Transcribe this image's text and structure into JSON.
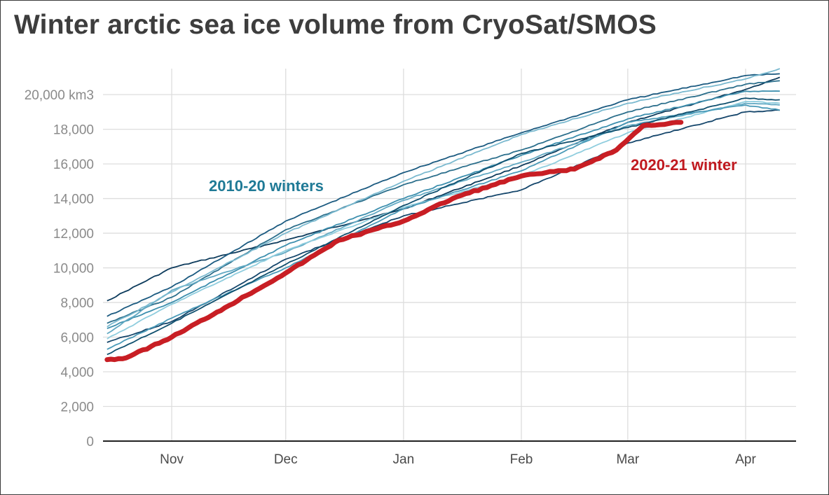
{
  "title": "Winter arctic sea ice volume from CryoSat/SMOS",
  "colors": {
    "current": "#c81e24",
    "history": [
      "#0d3b5c",
      "#1b5a80",
      "#2c6f8c",
      "#3d8fae",
      "#62a9c3",
      "#8fcdde",
      "#15466b",
      "#4a9ab8",
      "#0f4f6e",
      "#7ab9cf"
    ]
  },
  "chart_data": {
    "type": "line",
    "title": "Winter arctic sea ice volume from CryoSat/SMOS",
    "xlabel": "",
    "ylabel": "",
    "y_unit_label": "20,000 km3",
    "ylim": [
      0,
      21500
    ],
    "yticks": [
      {
        "value": 0,
        "label": "0"
      },
      {
        "value": 2000,
        "label": "2,000"
      },
      {
        "value": 4000,
        "label": "4,000"
      },
      {
        "value": 6000,
        "label": "6,000"
      },
      {
        "value": 8000,
        "label": "8,000"
      },
      {
        "value": 10000,
        "label": "10,000"
      },
      {
        "value": 12000,
        "label": "12,000"
      },
      {
        "value": 14000,
        "label": "14,000"
      },
      {
        "value": 16000,
        "label": "16,000"
      },
      {
        "value": 18000,
        "label": "18,000"
      },
      {
        "value": 20000,
        "label": "20,000 km3"
      }
    ],
    "x_axis": {
      "type": "date",
      "start": "Oct 15",
      "end": "Apr 10",
      "ticks": [
        {
          "date": "Nov 1",
          "label": "Nov"
        },
        {
          "date": "Dec 1",
          "label": "Dec"
        },
        {
          "date": "Jan 1",
          "label": "Jan"
        },
        {
          "date": "Feb 1",
          "label": "Feb"
        },
        {
          "date": "Mar 1",
          "label": "Mar"
        },
        {
          "date": "Apr 1",
          "label": "Apr"
        }
      ]
    },
    "grid": true,
    "annotations": [
      {
        "text": "2010-20 winters",
        "series": "history"
      },
      {
        "text": "2020-21 winter",
        "series": "current"
      }
    ],
    "history_series": [
      {
        "x": [
          "Oct 15",
          "Nov 1",
          "Dec 1",
          "Jan 1",
          "Feb 1",
          "Mar 1",
          "Apr 1",
          "Apr 10"
        ],
        "values": [
          8100,
          10000,
          11600,
          13400,
          15900,
          18400,
          20300,
          21000
        ]
      },
      {
        "x": [
          "Oct 15",
          "Nov 1",
          "Dec 1",
          "Jan 1",
          "Feb 1",
          "Mar 1",
          "Apr 1",
          "Apr 10"
        ],
        "values": [
          7200,
          8900,
          12700,
          15500,
          17800,
          19700,
          21100,
          21200
        ]
      },
      {
        "x": [
          "Oct 15",
          "Nov 1",
          "Dec 1",
          "Jan 1",
          "Feb 1",
          "Mar 1",
          "Apr 1",
          "Apr 10"
        ],
        "values": [
          6800,
          8300,
          12200,
          14800,
          16800,
          19000,
          20600,
          20800
        ]
      },
      {
        "x": [
          "Oct 15",
          "Nov 1",
          "Dec 1",
          "Jan 1",
          "Feb 1",
          "Mar 1",
          "Apr 1",
          "Apr 10"
        ],
        "values": [
          6500,
          8000,
          11300,
          14000,
          16500,
          18600,
          20200,
          20200
        ]
      },
      {
        "x": [
          "Oct 15",
          "Nov 1",
          "Dec 1",
          "Jan 1",
          "Feb 1",
          "Mar 1",
          "Apr 1",
          "Apr 10"
        ],
        "values": [
          6200,
          8700,
          10900,
          13900,
          16100,
          18200,
          19500,
          19400
        ]
      },
      {
        "x": [
          "Oct 15",
          "Nov 1",
          "Dec 1",
          "Jan 1",
          "Feb 1",
          "Mar 1",
          "Apr 1",
          "Apr 10"
        ],
        "values": [
          5900,
          7900,
          11000,
          13500,
          15300,
          17800,
          19600,
          19500
        ]
      },
      {
        "x": [
          "Oct 15",
          "Nov 1",
          "Dec 1",
          "Jan 1",
          "Feb 1",
          "Mar 1",
          "Apr 1",
          "Apr 10"
        ],
        "values": [
          5700,
          6900,
          10500,
          13000,
          14500,
          17200,
          19000,
          19100
        ]
      },
      {
        "x": [
          "Oct 15",
          "Nov 1",
          "Dec 1",
          "Jan 1",
          "Feb 1",
          "Mar 1",
          "Apr 1",
          "Apr 10"
        ],
        "values": [
          5300,
          7100,
          10000,
          13400,
          15600,
          18400,
          19400,
          19100
        ]
      },
      {
        "x": [
          "Oct 15",
          "Nov 1",
          "Dec 1",
          "Jan 1",
          "Feb 1",
          "Mar 1",
          "Apr 1",
          "Apr 10"
        ],
        "values": [
          5000,
          6800,
          10200,
          13600,
          16600,
          18100,
          19800,
          19700
        ]
      },
      {
        "x": [
          "Oct 15",
          "Nov 1",
          "Dec 1",
          "Jan 1",
          "Feb 1",
          "Mar 1",
          "Apr 1",
          "Apr 10"
        ],
        "values": [
          6600,
          8600,
          12000,
          15000,
          17700,
          19500,
          20900,
          21500
        ]
      }
    ],
    "current_series": {
      "x": [
        "Oct 15",
        "Oct 20",
        "Nov 1",
        "Nov 15",
        "Dec 1",
        "Dec 15",
        "Jan 1",
        "Jan 15",
        "Feb 1",
        "Feb 15",
        "Feb 26",
        "Mar 5",
        "Mar 15"
      ],
      "values": [
        4700,
        4800,
        6000,
        7700,
        9700,
        11600,
        12700,
        14100,
        15300,
        15700,
        16800,
        18200,
        18400
      ]
    }
  }
}
